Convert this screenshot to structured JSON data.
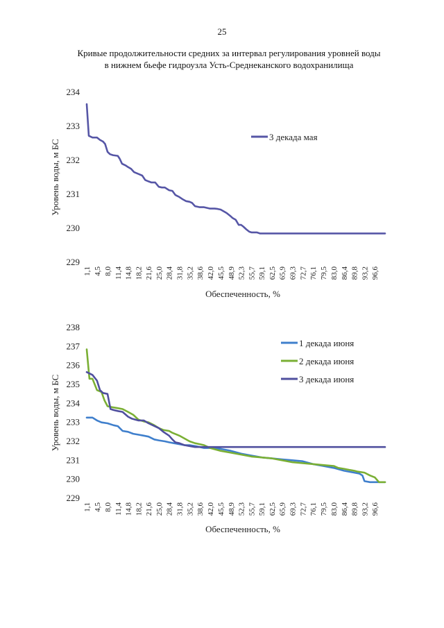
{
  "page": {
    "number": "25",
    "title_line1": "Кривые продолжительности средних за интервал регулирования уровней воды",
    "title_line2": "в нижнем бьефе гидроузла Усть-Среднеканского водохранилища"
  },
  "chart_data": [
    {
      "type": "line",
      "title": "",
      "xlabel": "Обеспеченность, %",
      "ylabel": "Уровень воды, м БС",
      "ylim": [
        229,
        234
      ],
      "yticks": [
        "229",
        "230",
        "231",
        "232",
        "233",
        "234"
      ],
      "categories": [
        "1,1",
        "4,5",
        "8,0",
        "11,4",
        "14,8",
        "18,2",
        "21,6",
        "25,0",
        "28,4",
        "31,8",
        "35,2",
        "38,6",
        "42,0",
        "45,5",
        "48,9",
        "52,3",
        "55,7",
        "59,1",
        "62,5",
        "65,9",
        "69,3",
        "72,7",
        "76,1",
        "79,5",
        "83,0",
        "86,4",
        "89,8",
        "93,2",
        "96,6"
      ],
      "x_range": [
        1.1,
        100
      ],
      "grid": false,
      "legend_position": "top-right",
      "series": [
        {
          "name": "3 декада мая",
          "color": "#5656a6",
          "x": [
            1.1,
            1.8,
            3.0,
            4.5,
            5.5,
            6.5,
            7.2,
            8.0,
            8.8,
            9.8,
            11.4,
            12.0,
            12.8,
            14.0,
            14.8,
            15.8,
            16.8,
            18.2,
            19.5,
            20.5,
            21.6,
            22.5,
            23.8,
            25.0,
            26.0,
            27.0,
            28.4,
            29.5,
            30.5,
            31.8,
            33.0,
            34.0,
            35.2,
            36.0,
            37.0,
            38.6,
            40.0,
            41.0,
            42.0,
            43.5,
            44.5,
            45.5,
            46.5,
            47.5,
            48.9,
            49.5,
            50.5,
            51.5,
            52.3,
            53.0,
            54.0,
            55.0,
            55.7,
            56.5,
            57.5,
            58.5,
            59.1,
            62.5,
            70,
            80,
            90,
            100
          ],
          "y": [
            233.65,
            232.72,
            232.67,
            232.67,
            232.6,
            232.55,
            232.48,
            232.25,
            232.18,
            232.15,
            232.13,
            232.05,
            231.9,
            231.85,
            231.8,
            231.75,
            231.65,
            231.6,
            231.55,
            231.42,
            231.38,
            231.35,
            231.35,
            231.22,
            231.2,
            231.2,
            231.12,
            231.1,
            230.98,
            230.92,
            230.85,
            230.8,
            230.78,
            230.75,
            230.65,
            230.62,
            230.62,
            230.6,
            230.58,
            230.58,
            230.57,
            230.55,
            230.5,
            230.45,
            230.35,
            230.3,
            230.25,
            230.1,
            230.1,
            230.05,
            229.97,
            229.9,
            229.88,
            229.88,
            229.88,
            229.85,
            229.85,
            229.85,
            229.85,
            229.85,
            229.85,
            229.85
          ]
        }
      ]
    },
    {
      "type": "line",
      "title": "",
      "xlabel": "Обеспеченность, %",
      "ylabel": "Уровень воды, м БС",
      "ylim": [
        229,
        238
      ],
      "yticks": [
        "229",
        "230",
        "231",
        "232",
        "233",
        "234",
        "235",
        "236",
        "237",
        "238"
      ],
      "categories": [
        "1,1",
        "4,5",
        "8,0",
        "11,4",
        "14,8",
        "18,2",
        "21,6",
        "25,0",
        "28,4",
        "31,8",
        "35,2",
        "38,6",
        "42,0",
        "45,5",
        "48,9",
        "52,3",
        "55,7",
        "59,1",
        "62,5",
        "65,9",
        "69,3",
        "72,7",
        "76,1",
        "79,5",
        "83,0",
        "86,4",
        "89,8",
        "93,2",
        "96,6"
      ],
      "x_range": [
        1.1,
        100
      ],
      "grid": false,
      "legend_position": "top-right",
      "series": [
        {
          "name": "1 декада июня",
          "color": "#3f7fcc",
          "x": [
            1.1,
            3.0,
            4.5,
            6.0,
            8.0,
            10.0,
            11.4,
            13.0,
            14.8,
            16.5,
            18.2,
            20.0,
            21.6,
            23.5,
            25.0,
            27.0,
            28.4,
            30.0,
            31.8,
            33.5,
            35.2,
            37.0,
            38.6,
            40.0,
            42.0,
            45.5,
            48.9,
            52.3,
            55.7,
            59.1,
            62.5,
            65.9,
            69.3,
            72.7,
            76.1,
            79.5,
            83.0,
            86.4,
            89.8,
            91.5,
            92.5,
            93.2,
            95.0,
            96.6,
            98.0,
            100
          ],
          "y": [
            233.25,
            233.25,
            233.1,
            233.0,
            232.95,
            232.85,
            232.8,
            232.55,
            232.5,
            232.4,
            232.35,
            232.3,
            232.25,
            232.1,
            232.05,
            232.0,
            231.95,
            231.9,
            231.85,
            231.8,
            231.8,
            231.75,
            231.7,
            231.65,
            231.65,
            231.6,
            231.5,
            231.35,
            231.25,
            231.15,
            231.1,
            231.05,
            231.0,
            230.95,
            230.8,
            230.7,
            230.6,
            230.45,
            230.35,
            230.3,
            230.2,
            229.9,
            229.85,
            229.85,
            229.85,
            229.85
          ]
        },
        {
          "name": "2 декада июня",
          "color": "#7aaf34",
          "x": [
            1.1,
            2.0,
            3.0,
            4.5,
            6.0,
            7.0,
            8.0,
            9.5,
            11.4,
            13.0,
            14.8,
            16.5,
            18.2,
            20.0,
            21.6,
            23.5,
            25.0,
            26.5,
            28.4,
            29.5,
            31.8,
            33.5,
            35.2,
            37.0,
            38.6,
            40.0,
            42.0,
            45.5,
            48.9,
            52.3,
            55.7,
            59.1,
            62.5,
            65.9,
            69.3,
            72.7,
            76.1,
            79.5,
            83.0,
            84.5,
            86.4,
            88.0,
            89.8,
            91.0,
            93.2,
            95.0,
            96.6,
            98.0,
            100
          ],
          "y": [
            236.85,
            235.3,
            235.3,
            234.7,
            234.6,
            234.15,
            233.85,
            233.8,
            233.75,
            233.7,
            233.55,
            233.4,
            233.15,
            233.05,
            233.0,
            232.85,
            232.7,
            232.6,
            232.55,
            232.45,
            232.3,
            232.15,
            232.0,
            231.9,
            231.85,
            231.8,
            231.65,
            231.5,
            231.4,
            231.3,
            231.2,
            231.15,
            231.1,
            231.0,
            230.9,
            230.85,
            230.8,
            230.75,
            230.7,
            230.6,
            230.55,
            230.5,
            230.45,
            230.4,
            230.35,
            230.2,
            230.1,
            229.85,
            229.85
          ]
        },
        {
          "name": "3 декада июня",
          "color": "#4f4f9e",
          "x": [
            1.1,
            3.0,
            4.5,
            5.5,
            6.5,
            8.0,
            9.0,
            10.0,
            11.4,
            13.0,
            14.8,
            16.0,
            18.2,
            20.0,
            21.6,
            23.0,
            25.0,
            26.5,
            28.4,
            29.5,
            30.5,
            31.8,
            33.5,
            35.2,
            37.0,
            38.6,
            42.0,
            50,
            60,
            70,
            80,
            90,
            100
          ],
          "y": [
            235.65,
            235.5,
            235.2,
            234.7,
            234.55,
            234.5,
            233.7,
            233.65,
            233.6,
            233.55,
            233.3,
            233.2,
            233.1,
            233.1,
            232.95,
            232.85,
            232.7,
            232.5,
            232.3,
            232.1,
            231.95,
            231.9,
            231.8,
            231.75,
            231.7,
            231.7,
            231.7,
            231.7,
            231.7,
            231.7,
            231.7,
            231.7,
            231.7
          ]
        }
      ]
    }
  ]
}
